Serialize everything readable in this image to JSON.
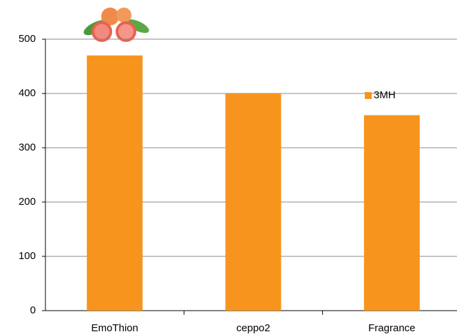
{
  "chart_data": {
    "type": "bar",
    "categories": [
      "EmoThion",
      "ceppo2",
      "Fragrance"
    ],
    "series": [
      {
        "name": "3MH",
        "color": "#f7941d",
        "values": [
          470,
          400,
          360
        ]
      }
    ],
    "ylim": [
      0,
      500
    ],
    "yticks": [
      0,
      100,
      200,
      300,
      400,
      500
    ],
    "grid": true,
    "legend": "upper right"
  }
}
